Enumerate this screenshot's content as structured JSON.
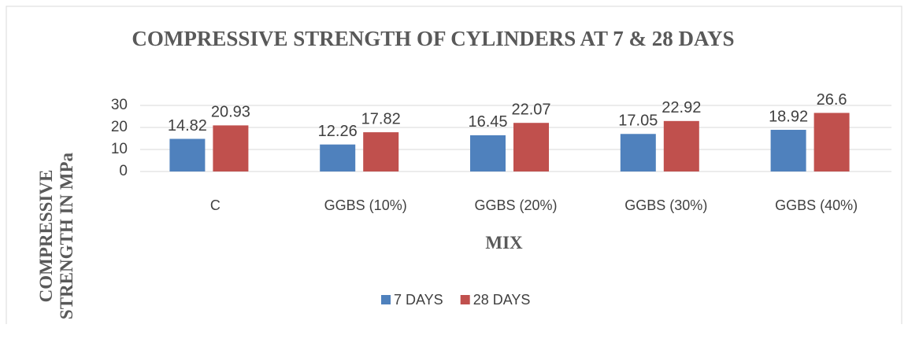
{
  "chart_data": {
    "type": "bar",
    "title": "COMPRESSIVE STRENGTH OF CYLINDERS AT 7 & 28 DAYS",
    "x_label": "MIX",
    "y_label": "COMPRESSIVE STRENGTH IN MPa",
    "categories": [
      "C",
      "GGBS (10%)",
      "GGBS (20%)",
      "GGBS (30%)",
      "GGBS (40%)"
    ],
    "series": [
      {
        "name": "7 DAYS",
        "color": "#4f81bd",
        "values": [
          14.82,
          12.26,
          16.45,
          17.05,
          18.92
        ]
      },
      {
        "name": "28 DAYS",
        "color": "#c0504d",
        "values": [
          20.93,
          17.82,
          22.07,
          22.92,
          26.6
        ]
      }
    ],
    "ylim": [
      0,
      30
    ],
    "yticks": [
      0,
      10,
      20,
      30
    ],
    "grid": true,
    "legend": "bottom"
  }
}
